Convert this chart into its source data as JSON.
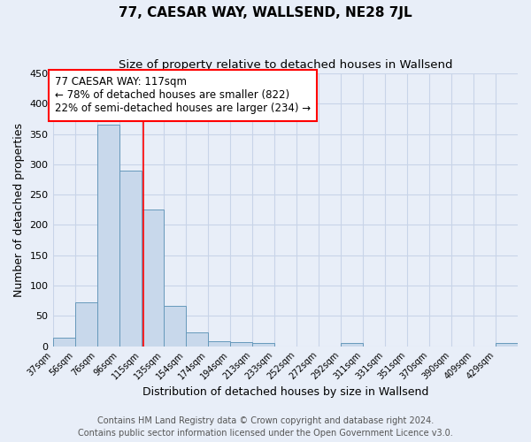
{
  "title": "77, CAESAR WAY, WALLSEND, NE28 7JL",
  "subtitle": "Size of property relative to detached houses in Wallsend",
  "xlabel": "Distribution of detached houses by size in Wallsend",
  "ylabel": "Number of detached properties",
  "footer_line1": "Contains HM Land Registry data © Crown copyright and database right 2024.",
  "footer_line2": "Contains public sector information licensed under the Open Government Licence v3.0.",
  "bar_labels": [
    "37sqm",
    "56sqm",
    "76sqm",
    "96sqm",
    "115sqm",
    "135sqm",
    "154sqm",
    "174sqm",
    "194sqm",
    "213sqm",
    "233sqm",
    "252sqm",
    "272sqm",
    "292sqm",
    "311sqm",
    "331sqm",
    "351sqm",
    "370sqm",
    "390sqm",
    "409sqm",
    "429sqm"
  ],
  "bar_values": [
    14,
    72,
    365,
    290,
    225,
    67,
    22,
    8,
    7,
    5,
    0,
    0,
    0,
    5,
    0,
    0,
    0,
    0,
    0,
    0,
    5
  ],
  "bar_color": "#c8d8eb",
  "bar_edge_color": "#6699bb",
  "annotation_text": "77 CAESAR WAY: 117sqm\n← 78% of detached houses are smaller (822)\n22% of semi-detached houses are larger (234) →",
  "annotation_box_color": "white",
  "annotation_box_edge_color": "red",
  "vline_x": 115,
  "vline_color": "red",
  "ylim": [
    0,
    450
  ],
  "yticks": [
    0,
    50,
    100,
    150,
    200,
    250,
    300,
    350,
    400,
    450
  ],
  "bin_width": 19,
  "first_edge": 37,
  "n_bars": 21,
  "background_color": "#e8eef8",
  "grid_color": "#c8d4e8",
  "title_fontsize": 11,
  "subtitle_fontsize": 9.5,
  "xlabel_fontsize": 9,
  "ylabel_fontsize": 9,
  "annotation_fontsize": 8.5,
  "footer_fontsize": 7
}
